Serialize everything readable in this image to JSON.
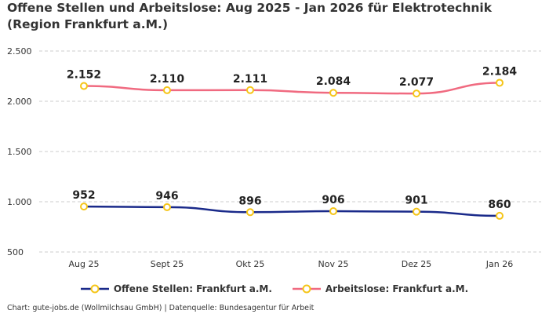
{
  "chart_data": {
    "type": "line",
    "title": "Offene Stellen und Arbeitslose: Aug 2025 - Jan 2026 für Elektrotechnik (Region Frankfurt a.M.)",
    "categories": [
      "Aug 25",
      "Sept 25",
      "Okt 25",
      "Nov 25",
      "Dez 25",
      "Jan 26"
    ],
    "series": [
      {
        "name": "Offene Stellen: Frankfurt a.M.",
        "values": [
          952,
          946,
          896,
          906,
          901,
          860
        ],
        "labels": [
          "952",
          "946",
          "896",
          "906",
          "901",
          "860"
        ],
        "color": "#1a2a8a"
      },
      {
        "name": "Arbeitslose: Frankfurt a.M.",
        "values": [
          2152,
          2110,
          2111,
          2084,
          2077,
          2184
        ],
        "labels": [
          "2.152",
          "2.110",
          "2.111",
          "2.084",
          "2.077",
          "2.184"
        ],
        "color": "#f06a80"
      }
    ],
    "yticks": [
      500,
      1000,
      1500,
      2000,
      2500
    ],
    "ytick_labels": [
      "500",
      "1.000",
      "1.500",
      "2.000",
      "2.500"
    ],
    "ylim": [
      500,
      2500
    ],
    "grid": true,
    "legend": "bottom",
    "marker_color": "#f5c518"
  },
  "footer": "Chart: gute-jobs.de (Wollmilchsau GmbH) | Datenquelle: Bundesagentur für Arbeit"
}
